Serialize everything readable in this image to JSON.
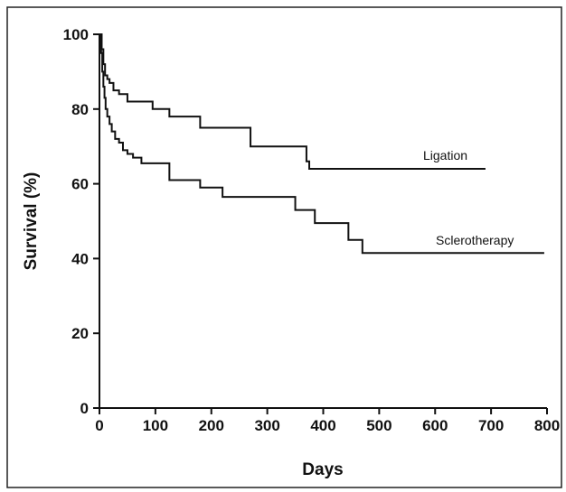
{
  "chart_data": {
    "type": "line",
    "title": "",
    "xlabel": "Days",
    "ylabel": "Survival (%)",
    "xlim": [
      0,
      800
    ],
    "ylim": [
      0,
      100
    ],
    "xticks": [
      0,
      100,
      200,
      300,
      400,
      500,
      600,
      700,
      800
    ],
    "yticks": [
      0,
      20,
      40,
      60,
      80,
      100
    ],
    "grid": false,
    "legend": "inline labels at line ends",
    "series": [
      {
        "name": "Ligation",
        "step": true,
        "x": [
          0,
          4,
          7,
          10,
          14,
          18,
          25,
          35,
          50,
          95,
          125,
          180,
          270,
          370,
          375,
          690
        ],
        "y": [
          100,
          96,
          92,
          89,
          88,
          87,
          85,
          84,
          82,
          80,
          78,
          75,
          70,
          66,
          64,
          64
        ]
      },
      {
        "name": "Sclerotherapy",
        "step": true,
        "x": [
          0,
          3,
          5,
          7,
          9,
          11,
          14,
          18,
          22,
          28,
          35,
          42,
          50,
          60,
          75,
          125,
          180,
          220,
          350,
          385,
          445,
          470,
          795
        ],
        "y": [
          100,
          95,
          90,
          86,
          83,
          80,
          78,
          76,
          74,
          72,
          71,
          69,
          68,
          67,
          65.5,
          61,
          59,
          56.5,
          53,
          49.5,
          45,
          41.5,
          41.5
        ]
      }
    ],
    "annotations": [
      "Ligation",
      "Sclerotherapy"
    ]
  },
  "colors": {
    "line": "#111111",
    "background": "#ffffff"
  }
}
